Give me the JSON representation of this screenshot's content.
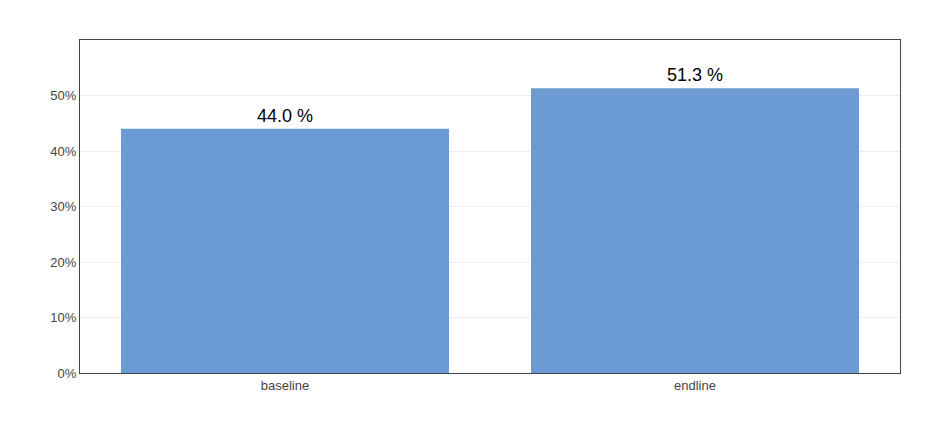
{
  "chart_data": {
    "type": "bar",
    "categories": [
      "baseline",
      "endline"
    ],
    "values": [
      44.0,
      51.3
    ],
    "value_labels": [
      "44.0 %",
      "51.3 %"
    ],
    "data_labels": true,
    "color": "#6b9bd2",
    "ylim": [
      0,
      60
    ],
    "yticks": [
      {
        "value": 0,
        "label": "0%"
      },
      {
        "value": 10,
        "label": "10%"
      },
      {
        "value": 20,
        "label": "20%"
      },
      {
        "value": 30,
        "label": "30%"
      },
      {
        "value": 40,
        "label": "40%"
      },
      {
        "value": 50,
        "label": "50%"
      }
    ],
    "grid": true
  }
}
